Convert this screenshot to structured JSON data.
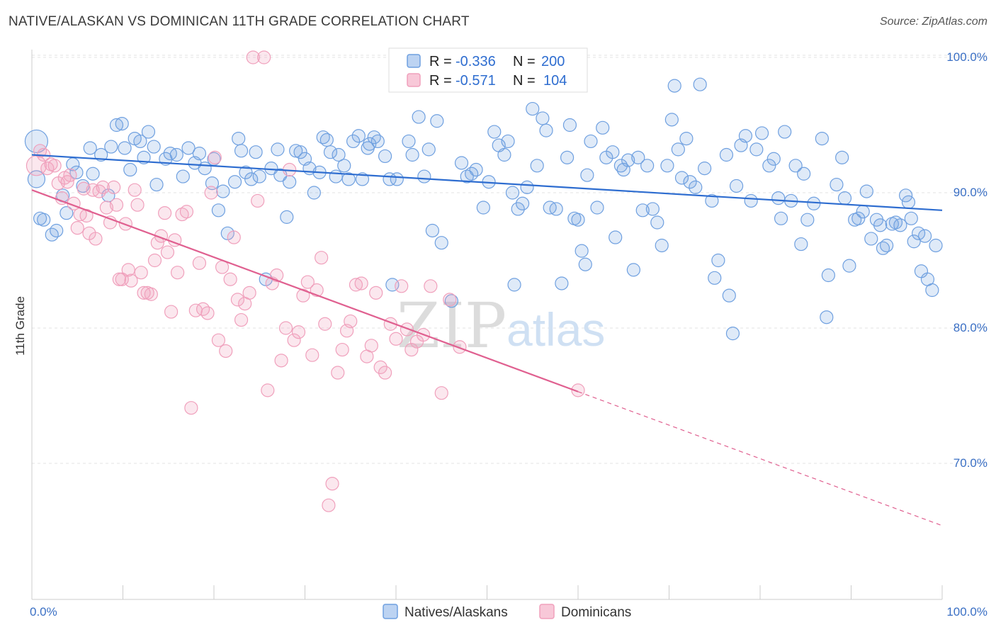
{
  "header": {
    "title": "NATIVE/ALASKAN VS DOMINICAN 11TH GRADE CORRELATION CHART",
    "source": "Source: ZipAtlas.com"
  },
  "watermark": {
    "zip": "ZIP",
    "atlas": "atlas"
  },
  "legend_top": {
    "rows": [
      {
        "r_label": "R =",
        "r_value": "-0.336",
        "n_label": "N =",
        "n_value": "200",
        "color": "#6fa0e0"
      },
      {
        "r_label": "R =",
        "r_value": "-0.571",
        "n_label": "N =",
        "n_value": "104",
        "color": "#f0a0bc"
      }
    ]
  },
  "legend_bottom": {
    "items": [
      {
        "label": "Natives/Alaskans",
        "color": "#6fa0e0"
      },
      {
        "label": "Dominicans",
        "color": "#f0a0bc"
      }
    ]
  },
  "chart_data": {
    "type": "scatter",
    "title": "NATIVE/ALASKAN VS DOMINICAN 11TH GRADE CORRELATION CHART",
    "xlabel": "",
    "ylabel": "11th Grade",
    "xlim": [
      0,
      100
    ],
    "ylim": [
      60,
      101.5
    ],
    "x_tick_labels": [
      "0.0%",
      "100.0%"
    ],
    "y_ticks": [
      70,
      80,
      90,
      100
    ],
    "y_tick_labels": [
      "70.0%",
      "80.0%",
      "90.0%",
      "100.0%"
    ],
    "grid": true,
    "legend": "top-center",
    "series": [
      {
        "name": "Natives/Alaskans",
        "color": "#6fa0e0",
        "line_color": "#2e6dd0",
        "r": -0.336,
        "n": 200,
        "trend": {
          "x": [
            0,
            100
          ],
          "y": [
            92.8,
            88.7
          ]
        },
        "points": [
          [
            0.5,
            93.8
          ],
          [
            0.5,
            91.0
          ],
          [
            1.3,
            88.0
          ],
          [
            2.2,
            86.9
          ],
          [
            2.7,
            87.2
          ],
          [
            3.4,
            89.8
          ],
          [
            3.8,
            88.5
          ],
          [
            4.5,
            92.1
          ],
          [
            4.9,
            91.5
          ],
          [
            5.6,
            90.5
          ],
          [
            6.4,
            93.3
          ],
          [
            6.7,
            91.4
          ],
          [
            7.6,
            92.8
          ],
          [
            8.4,
            89.8
          ],
          [
            8.7,
            93.4
          ],
          [
            9.3,
            95.0
          ],
          [
            9.9,
            95.1
          ],
          [
            10.2,
            93.3
          ],
          [
            10.8,
            91.7
          ],
          [
            11.3,
            94.0
          ],
          [
            11.9,
            93.8
          ],
          [
            12.3,
            92.6
          ],
          [
            12.8,
            94.5
          ],
          [
            13.4,
            93.4
          ],
          [
            13.7,
            90.6
          ],
          [
            14.7,
            92.5
          ],
          [
            15.2,
            92.9
          ],
          [
            15.9,
            92.8
          ],
          [
            16.6,
            91.2
          ],
          [
            17.2,
            93.3
          ],
          [
            17.9,
            92.2
          ],
          [
            18.4,
            92.9
          ],
          [
            19.0,
            91.8
          ],
          [
            19.8,
            90.7
          ],
          [
            20.0,
            92.5
          ],
          [
            20.5,
            88.7
          ],
          [
            21.0,
            90.1
          ],
          [
            21.5,
            87.0
          ],
          [
            22.3,
            90.8
          ],
          [
            22.7,
            94.0
          ],
          [
            23.0,
            93.1
          ],
          [
            23.5,
            91.5
          ],
          [
            24.1,
            91.0
          ],
          [
            24.6,
            93.0
          ],
          [
            25.0,
            91.2
          ],
          [
            25.7,
            83.6
          ],
          [
            26.3,
            91.8
          ],
          [
            27.0,
            93.2
          ],
          [
            27.3,
            91.3
          ],
          [
            28.0,
            88.2
          ],
          [
            28.3,
            90.8
          ],
          [
            29.0,
            93.1
          ],
          [
            29.5,
            93.0
          ],
          [
            30.0,
            92.5
          ],
          [
            30.5,
            91.8
          ],
          [
            31.0,
            90.0
          ],
          [
            31.6,
            91.5
          ],
          [
            32.0,
            94.1
          ],
          [
            32.4,
            93.9
          ],
          [
            32.8,
            93.0
          ],
          [
            33.4,
            91.2
          ],
          [
            33.7,
            92.8
          ],
          [
            34.3,
            92.0
          ],
          [
            34.8,
            91.0
          ],
          [
            35.3,
            93.8
          ],
          [
            35.9,
            94.2
          ],
          [
            36.3,
            91.0
          ],
          [
            36.9,
            93.3
          ],
          [
            37.1,
            93.6
          ],
          [
            37.6,
            94.1
          ],
          [
            38.0,
            93.8
          ],
          [
            38.8,
            92.7
          ],
          [
            39.3,
            91.0
          ],
          [
            39.6,
            83.2
          ],
          [
            40.1,
            91.0
          ],
          [
            41.4,
            93.8
          ],
          [
            41.8,
            92.8
          ],
          [
            42.5,
            95.6
          ],
          [
            43.1,
            91.2
          ],
          [
            43.6,
            93.2
          ],
          [
            44.0,
            87.2
          ],
          [
            44.5,
            95.3
          ],
          [
            45.0,
            86.3
          ],
          [
            46.1,
            82.0
          ],
          [
            47.2,
            92.2
          ],
          [
            47.8,
            91.2
          ],
          [
            48.3,
            91.4
          ],
          [
            48.8,
            91.7
          ],
          [
            49.6,
            88.9
          ],
          [
            50.2,
            90.8
          ],
          [
            50.8,
            94.5
          ],
          [
            51.3,
            93.5
          ],
          [
            51.9,
            92.8
          ],
          [
            52.3,
            93.8
          ],
          [
            52.8,
            90.0
          ],
          [
            53.0,
            83.2
          ],
          [
            53.4,
            88.8
          ],
          [
            53.9,
            89.2
          ],
          [
            54.4,
            90.4
          ],
          [
            55.0,
            96.2
          ],
          [
            55.5,
            92.0
          ],
          [
            56.1,
            95.5
          ],
          [
            56.5,
            94.6
          ],
          [
            56.9,
            88.9
          ],
          [
            57.6,
            88.8
          ],
          [
            58.2,
            83.3
          ],
          [
            58.8,
            92.6
          ],
          [
            59.1,
            95.0
          ],
          [
            59.6,
            88.1
          ],
          [
            60.4,
            85.7
          ],
          [
            60.8,
            84.7
          ],
          [
            61.0,
            91.3
          ],
          [
            61.4,
            93.8
          ],
          [
            62.1,
            88.9
          ],
          [
            62.7,
            94.8
          ],
          [
            63.1,
            92.6
          ],
          [
            63.8,
            93.0
          ],
          [
            64.1,
            86.7
          ],
          [
            64.7,
            92.0
          ],
          [
            65.0,
            91.7
          ],
          [
            65.5,
            92.4
          ],
          [
            66.1,
            84.3
          ],
          [
            66.6,
            92.6
          ],
          [
            67.1,
            88.7
          ],
          [
            67.6,
            92.0
          ],
          [
            68.2,
            88.8
          ],
          [
            68.7,
            87.8
          ],
          [
            69.2,
            86.1
          ],
          [
            69.8,
            92.0
          ],
          [
            70.3,
            95.4
          ],
          [
            70.6,
            97.9
          ],
          [
            71.0,
            93.2
          ],
          [
            71.4,
            91.1
          ],
          [
            71.9,
            94.0
          ],
          [
            72.3,
            90.8
          ],
          [
            72.9,
            90.4
          ],
          [
            73.4,
            98.0
          ],
          [
            73.9,
            91.8
          ],
          [
            74.7,
            89.4
          ],
          [
            75.0,
            83.7
          ],
          [
            75.4,
            85.0
          ],
          [
            76.3,
            92.8
          ],
          [
            76.6,
            82.4
          ],
          [
            77.0,
            79.6
          ],
          [
            77.4,
            90.5
          ],
          [
            77.9,
            93.5
          ],
          [
            78.4,
            94.2
          ],
          [
            79.0,
            89.4
          ],
          [
            79.6,
            93.2
          ],
          [
            80.2,
            94.4
          ],
          [
            81.0,
            92.0
          ],
          [
            81.5,
            92.5
          ],
          [
            82.0,
            89.6
          ],
          [
            82.3,
            88.1
          ],
          [
            82.7,
            94.5
          ],
          [
            83.4,
            89.4
          ],
          [
            83.9,
            92.0
          ],
          [
            84.5,
            86.2
          ],
          [
            84.8,
            91.4
          ],
          [
            85.2,
            88.0
          ],
          [
            85.9,
            89.2
          ],
          [
            86.8,
            94.0
          ],
          [
            87.3,
            80.8
          ],
          [
            87.5,
            83.9
          ],
          [
            88.4,
            90.6
          ],
          [
            89.0,
            92.6
          ],
          [
            89.3,
            89.6
          ],
          [
            89.8,
            84.6
          ],
          [
            90.4,
            88.0
          ],
          [
            90.8,
            88.1
          ],
          [
            91.3,
            88.6
          ],
          [
            91.7,
            90.1
          ],
          [
            92.2,
            86.6
          ],
          [
            92.8,
            88.0
          ],
          [
            93.2,
            87.6
          ],
          [
            93.5,
            85.9
          ],
          [
            93.9,
            86.1
          ],
          [
            94.5,
            87.7
          ],
          [
            94.9,
            87.8
          ],
          [
            95.4,
            87.6
          ],
          [
            96.0,
            89.8
          ],
          [
            96.3,
            89.3
          ],
          [
            96.6,
            88.1
          ],
          [
            96.9,
            86.4
          ],
          [
            97.4,
            87.0
          ],
          [
            97.7,
            84.2
          ],
          [
            98.1,
            86.8
          ],
          [
            98.4,
            83.6
          ],
          [
            98.9,
            82.8
          ],
          [
            99.3,
            86.1
          ],
          [
            60.0,
            88.0
          ],
          [
            0.9,
            88.1
          ]
        ]
      },
      {
        "name": "Dominicans",
        "color": "#f0a0bc",
        "line_color": "#e06090",
        "r": -0.571,
        "n": 104,
        "trend": {
          "x": [
            0,
            60,
            100
          ],
          "y": [
            90.2,
            75.3,
            65.4
          ],
          "solid_until": 60
        },
        "points": [
          [
            0.5,
            92.0
          ],
          [
            0.9,
            93.1
          ],
          [
            1.3,
            92.8
          ],
          [
            1.7,
            91.8
          ],
          [
            2.1,
            92.1
          ],
          [
            2.5,
            92.0
          ],
          [
            2.9,
            90.7
          ],
          [
            3.3,
            89.6
          ],
          [
            3.6,
            91.1
          ],
          [
            3.9,
            90.8
          ],
          [
            4.2,
            91.3
          ],
          [
            4.6,
            89.2
          ],
          [
            5.0,
            87.4
          ],
          [
            5.3,
            88.4
          ],
          [
            5.7,
            90.3
          ],
          [
            6.0,
            88.3
          ],
          [
            6.3,
            87.0
          ],
          [
            6.7,
            90.2
          ],
          [
            7.0,
            86.6
          ],
          [
            7.4,
            90.1
          ],
          [
            7.8,
            90.4
          ],
          [
            8.2,
            88.9
          ],
          [
            8.6,
            87.8
          ],
          [
            9.0,
            90.4
          ],
          [
            9.3,
            89.1
          ],
          [
            9.6,
            83.6
          ],
          [
            9.9,
            83.6
          ],
          [
            10.3,
            87.7
          ],
          [
            10.6,
            84.3
          ],
          [
            10.9,
            83.5
          ],
          [
            11.3,
            90.2
          ],
          [
            11.6,
            89.1
          ],
          [
            12.0,
            84.1
          ],
          [
            12.3,
            82.6
          ],
          [
            12.7,
            82.6
          ],
          [
            13.1,
            82.5
          ],
          [
            13.5,
            85.0
          ],
          [
            13.8,
            86.3
          ],
          [
            14.2,
            86.8
          ],
          [
            14.6,
            88.5
          ],
          [
            14.9,
            85.6
          ],
          [
            15.3,
            81.2
          ],
          [
            15.7,
            86.5
          ],
          [
            16.0,
            84.1
          ],
          [
            16.5,
            88.4
          ],
          [
            17.0,
            88.6
          ],
          [
            17.5,
            74.1
          ],
          [
            18.0,
            81.3
          ],
          [
            18.4,
            84.8
          ],
          [
            18.8,
            81.4
          ],
          [
            19.3,
            81.1
          ],
          [
            19.7,
            90.0
          ],
          [
            20.1,
            92.6
          ],
          [
            20.5,
            79.1
          ],
          [
            20.9,
            84.5
          ],
          [
            21.3,
            78.3
          ],
          [
            21.8,
            83.6
          ],
          [
            22.2,
            86.7
          ],
          [
            22.6,
            82.1
          ],
          [
            23.0,
            80.6
          ],
          [
            23.4,
            81.8
          ],
          [
            23.9,
            82.6
          ],
          [
            24.3,
            100.0
          ],
          [
            24.8,
            89.4
          ],
          [
            25.5,
            100.0
          ],
          [
            25.9,
            75.4
          ],
          [
            26.4,
            83.3
          ],
          [
            26.9,
            83.9
          ],
          [
            27.4,
            77.6
          ],
          [
            27.9,
            80.0
          ],
          [
            28.3,
            91.7
          ],
          [
            28.8,
            79.1
          ],
          [
            29.3,
            79.7
          ],
          [
            29.8,
            82.4
          ],
          [
            30.3,
            83.4
          ],
          [
            30.8,
            78.0
          ],
          [
            31.3,
            82.8
          ],
          [
            31.8,
            85.2
          ],
          [
            32.2,
            80.3
          ],
          [
            32.6,
            66.9
          ],
          [
            33.0,
            68.5
          ],
          [
            33.6,
            76.7
          ],
          [
            34.1,
            78.4
          ],
          [
            34.6,
            79.8
          ],
          [
            35.0,
            80.5
          ],
          [
            35.6,
            83.2
          ],
          [
            36.2,
            83.3
          ],
          [
            36.8,
            77.9
          ],
          [
            37.3,
            78.7
          ],
          [
            37.8,
            82.6
          ],
          [
            38.3,
            77.1
          ],
          [
            38.8,
            76.7
          ],
          [
            39.4,
            80.3
          ],
          [
            40.0,
            79.2
          ],
          [
            40.6,
            83.1
          ],
          [
            41.2,
            79.9
          ],
          [
            41.7,
            78.4
          ],
          [
            42.3,
            79.0
          ],
          [
            43.0,
            79.5
          ],
          [
            43.8,
            83.1
          ],
          [
            45.0,
            75.2
          ],
          [
            45.9,
            82.1
          ],
          [
            47.0,
            78.6
          ],
          [
            60.0,
            75.4
          ]
        ]
      }
    ]
  }
}
